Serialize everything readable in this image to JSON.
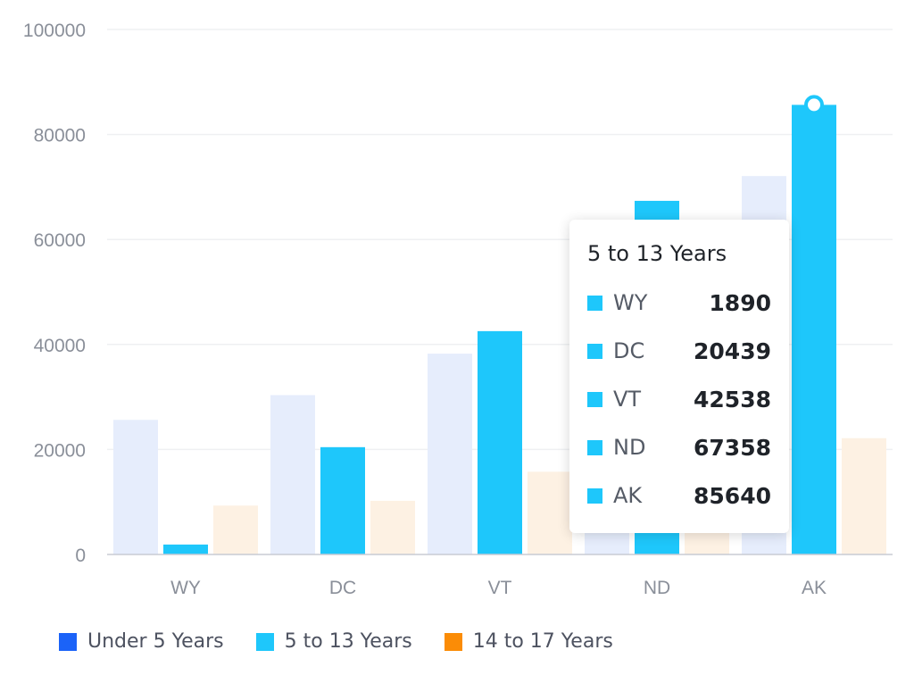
{
  "chart_data": {
    "type": "bar",
    "categories": [
      "WY",
      "DC",
      "VT",
      "ND",
      "AK"
    ],
    "series": [
      {
        "name": "Under 5 Years",
        "values": [
          25635,
          30352,
          38253,
          51896,
          72083
        ]
      },
      {
        "name": "5 to 13 Years",
        "values": [
          1890,
          20439,
          42538,
          67358,
          85640
        ]
      },
      {
        "name": "14 to 17 Years",
        "values": [
          9314,
          10225,
          15757,
          15470,
          22153
        ]
      }
    ],
    "ylim": [
      0,
      100000
    ],
    "yticks": [
      "0",
      "20000",
      "40000",
      "60000",
      "80000",
      "100000"
    ],
    "legend_position": "bottom-left",
    "grid": true,
    "active_series": "5 to 13 Years",
    "highlight_category": "AK"
  },
  "colors": {
    "series": [
      "#1b63f8",
      "#1ec7fb",
      "#fb8c06"
    ],
    "series_faded": [
      "#e6edfc",
      "#1ec7fb",
      "#fdf1e3"
    ],
    "grid": "#eff0f2",
    "axis": "#c8ccd4"
  },
  "tooltip": {
    "title": "5 to 13 Years",
    "rows": [
      {
        "name": "WY",
        "value": "1890"
      },
      {
        "name": "DC",
        "value": "20439"
      },
      {
        "name": "VT",
        "value": "42538"
      },
      {
        "name": "ND",
        "value": "67358"
      },
      {
        "name": "AK",
        "value": "85640"
      }
    ]
  }
}
